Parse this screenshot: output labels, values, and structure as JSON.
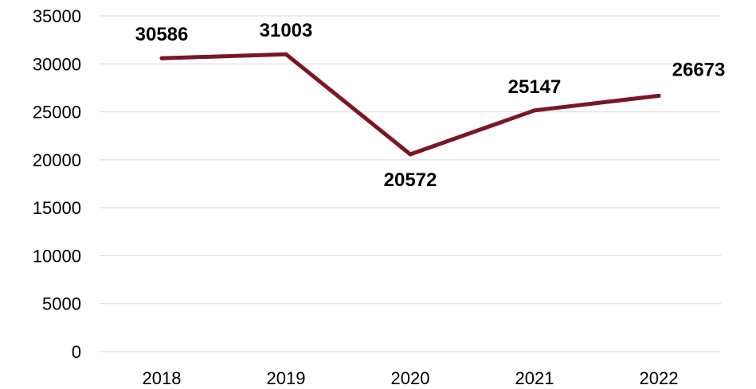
{
  "chart_data": {
    "type": "line",
    "categories": [
      "2018",
      "2019",
      "2020",
      "2021",
      "2022"
    ],
    "values": [
      30586,
      31003,
      20572,
      25147,
      26673
    ],
    "data_labels": [
      "30586",
      "31003",
      "20572",
      "25147",
      "26673"
    ],
    "y_ticks": [
      "0",
      "5000",
      "10000",
      "15000",
      "20000",
      "25000",
      "30000",
      "35000"
    ],
    "ylim": [
      0,
      35000
    ],
    "grid": true,
    "legend": "none",
    "line_color": "#7b1624"
  }
}
